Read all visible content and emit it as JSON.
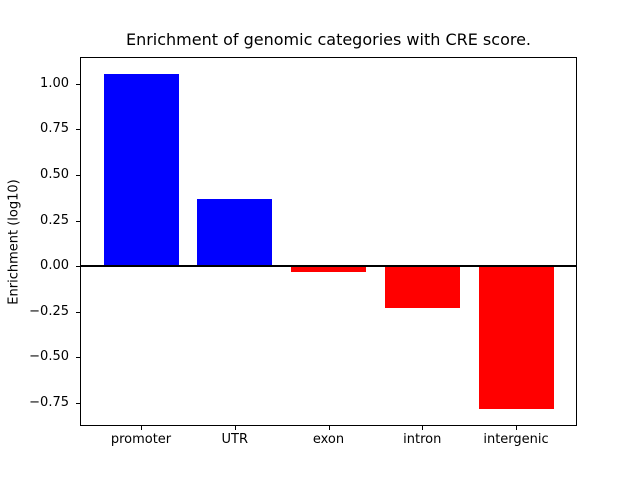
{
  "chart_data": {
    "type": "bar",
    "title": "Enrichment of genomic categories with CRE score.",
    "xlabel": "",
    "ylabel": "Enrichment (log10)",
    "categories": [
      "promoter",
      "UTR",
      "exon",
      "intron",
      "intergenic"
    ],
    "values": [
      1.05,
      0.37,
      -0.03,
      -0.23,
      -0.78
    ],
    "bar_colors": {
      "positive": "#0000ff",
      "negative": "#ff0000"
    },
    "yticks": [
      1.0,
      0.75,
      0.5,
      0.25,
      0.0,
      -0.25,
      -0.5,
      -0.75
    ],
    "ytick_labels": [
      "1.00",
      "0.75",
      "0.50",
      "0.25",
      "0.00",
      "−0.25",
      "−0.50",
      "−0.75"
    ],
    "ylim": [
      -0.87,
      1.14
    ],
    "xlim": [
      -0.64,
      4.64
    ],
    "bar_width": 0.8,
    "grid": false,
    "legend": "none",
    "zero_line": true,
    "background": "#ffffff"
  }
}
